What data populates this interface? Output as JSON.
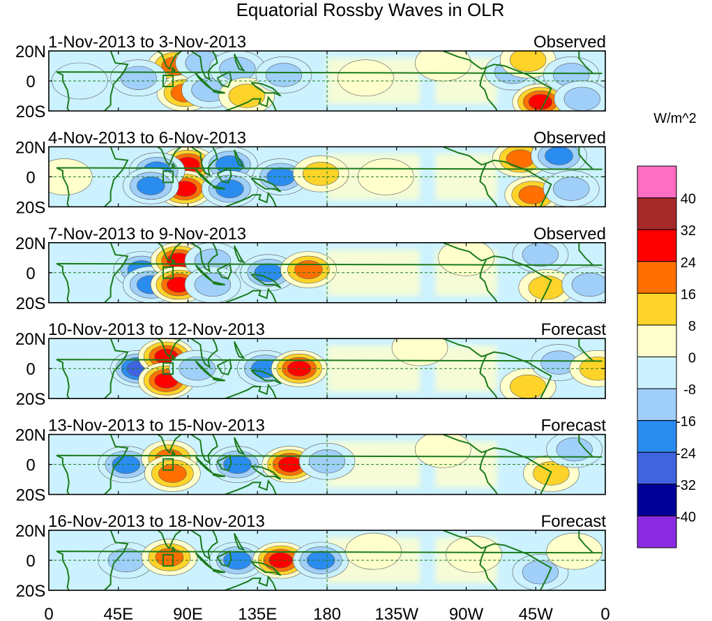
{
  "chart_data": {
    "type": "heatmap",
    "title": "Equatorial Rossby Waves in OLR",
    "units_label": "W/m^2",
    "x_ticks": [
      "0",
      "45E",
      "90E",
      "135E",
      "180",
      "135W",
      "90W",
      "45W",
      "0"
    ],
    "x_tick_values": [
      0,
      45,
      90,
      135,
      180,
      225,
      270,
      315,
      360
    ],
    "y_ticks": [
      "20N",
      "0",
      "20S"
    ],
    "y_tick_values": [
      20,
      0,
      -20
    ],
    "xlim": [
      0,
      360
    ],
    "ylim": [
      -20,
      20
    ],
    "colorbar": {
      "labels": [
        "40",
        "32",
        "24",
        "16",
        "8",
        "0",
        "-8",
        "-16",
        "-24",
        "-32",
        "-40"
      ],
      "colors": [
        "#ff6ec0",
        "#a52a2a",
        "#ff0000",
        "#ff7000",
        "#ffd42a",
        "#ffffcc",
        "#ccf2ff",
        "#a0cffa",
        "#2b8cf0",
        "#4064e0",
        "#000099",
        "#8a2be2"
      ]
    },
    "panels": [
      {
        "period": "1-Nov-2013 to 3-Nov-2013",
        "status": "Observed",
        "features": [
          {
            "lon": 82,
            "lat": 10,
            "value": 20
          },
          {
            "lon": 88,
            "lat": -8,
            "value": 22
          },
          {
            "lon": 100,
            "lat": 12,
            "value": -14
          },
          {
            "lon": 104,
            "lat": -6,
            "value": -12
          },
          {
            "lon": 58,
            "lat": 2,
            "value": -10
          },
          {
            "lon": 122,
            "lat": 8,
            "value": -14
          },
          {
            "lon": 128,
            "lat": -10,
            "value": 10
          },
          {
            "lon": 152,
            "lat": 4,
            "value": -10
          },
          {
            "lon": 205,
            "lat": 2,
            "value": 5
          },
          {
            "lon": 255,
            "lat": 12,
            "value": 6
          },
          {
            "lon": 300,
            "lat": 6,
            "value": -12
          },
          {
            "lon": 318,
            "lat": -14,
            "value": 24
          },
          {
            "lon": 310,
            "lat": 14,
            "value": 12
          },
          {
            "lon": 338,
            "lat": 4,
            "value": -8
          },
          {
            "lon": 345,
            "lat": -12,
            "value": -14
          },
          {
            "lon": 20,
            "lat": 0,
            "value": -5
          }
        ]
      },
      {
        "period": "4-Nov-2013 to 6-Nov-2013",
        "status": "Observed",
        "features": [
          {
            "lon": 90,
            "lat": 8,
            "value": 26
          },
          {
            "lon": 88,
            "lat": -8,
            "value": 26
          },
          {
            "lon": 70,
            "lat": 4,
            "value": -18
          },
          {
            "lon": 66,
            "lat": -6,
            "value": -16
          },
          {
            "lon": 117,
            "lat": 8,
            "value": -18
          },
          {
            "lon": 117,
            "lat": -8,
            "value": -18
          },
          {
            "lon": 150,
            "lat": 0,
            "value": -16
          },
          {
            "lon": 176,
            "lat": 2,
            "value": 12
          },
          {
            "lon": 218,
            "lat": 0,
            "value": 4
          },
          {
            "lon": 305,
            "lat": 12,
            "value": 16
          },
          {
            "lon": 313,
            "lat": -12,
            "value": 18
          },
          {
            "lon": 330,
            "lat": 14,
            "value": -18
          },
          {
            "lon": 338,
            "lat": -8,
            "value": -10
          },
          {
            "lon": 10,
            "lat": 0,
            "value": 6
          }
        ]
      },
      {
        "period": "7-Nov-2013 to 9-Nov-2013",
        "status": "Observed",
        "features": [
          {
            "lon": 60,
            "lat": 2,
            "value": -22
          },
          {
            "lon": 66,
            "lat": -8,
            "value": -22
          },
          {
            "lon": 84,
            "lat": 8,
            "value": 26
          },
          {
            "lon": 84,
            "lat": -8,
            "value": 24
          },
          {
            "lon": 106,
            "lat": 8,
            "value": -12
          },
          {
            "lon": 106,
            "lat": -8,
            "value": -12
          },
          {
            "lon": 142,
            "lat": 0,
            "value": -22
          },
          {
            "lon": 168,
            "lat": 2,
            "value": 18
          },
          {
            "lon": 270,
            "lat": 10,
            "value": 6
          },
          {
            "lon": 318,
            "lat": 12,
            "value": -12
          },
          {
            "lon": 322,
            "lat": -10,
            "value": 10
          },
          {
            "lon": 350,
            "lat": -8,
            "value": -8
          }
        ]
      },
      {
        "period": "10-Nov-2013 to 12-Nov-2013",
        "status": "Forecast",
        "features": [
          {
            "lon": 58,
            "lat": 0,
            "value": -26
          },
          {
            "lon": 76,
            "lat": 8,
            "value": 26
          },
          {
            "lon": 76,
            "lat": -8,
            "value": 24
          },
          {
            "lon": 96,
            "lat": 0,
            "value": -14
          },
          {
            "lon": 140,
            "lat": 0,
            "value": -22
          },
          {
            "lon": 162,
            "lat": 0,
            "value": 26
          },
          {
            "lon": 240,
            "lat": 14,
            "value": 6
          },
          {
            "lon": 310,
            "lat": -12,
            "value": 8
          },
          {
            "lon": 330,
            "lat": 4,
            "value": -8
          },
          {
            "lon": 355,
            "lat": 0,
            "value": 8
          }
        ]
      },
      {
        "period": "13-Nov-2013 to 15-Nov-2013",
        "status": "Forecast",
        "features": [
          {
            "lon": 50,
            "lat": 0,
            "value": -18
          },
          {
            "lon": 78,
            "lat": 4,
            "value": 18
          },
          {
            "lon": 80,
            "lat": -6,
            "value": 16
          },
          {
            "lon": 122,
            "lat": 0,
            "value": -20
          },
          {
            "lon": 156,
            "lat": 0,
            "value": 26
          },
          {
            "lon": 180,
            "lat": 2,
            "value": -10
          },
          {
            "lon": 255,
            "lat": 10,
            "value": 6
          },
          {
            "lon": 325,
            "lat": -6,
            "value": 10
          },
          {
            "lon": 340,
            "lat": 10,
            "value": -8
          }
        ]
      },
      {
        "period": "16-Nov-2013 to 18-Nov-2013",
        "status": "Forecast",
        "features": [
          {
            "lon": 50,
            "lat": 0,
            "value": -12
          },
          {
            "lon": 78,
            "lat": 2,
            "value": 18
          },
          {
            "lon": 122,
            "lat": 0,
            "value": -22
          },
          {
            "lon": 150,
            "lat": 0,
            "value": 26
          },
          {
            "lon": 176,
            "lat": 0,
            "value": -16
          },
          {
            "lon": 210,
            "lat": 6,
            "value": 5
          },
          {
            "lon": 275,
            "lat": 4,
            "value": 6
          },
          {
            "lon": 318,
            "lat": -8,
            "value": -8
          },
          {
            "lon": 340,
            "lat": 6,
            "value": 6
          }
        ]
      }
    ]
  }
}
